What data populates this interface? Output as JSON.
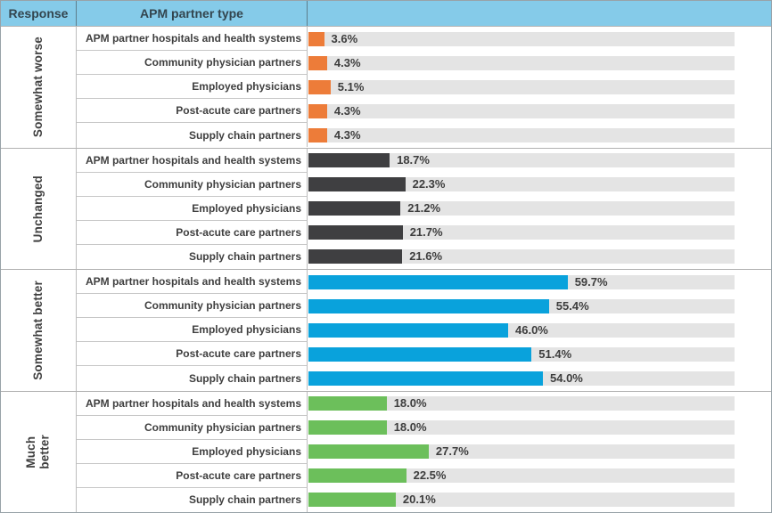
{
  "header": {
    "response": "Response",
    "partner_type": "APM partner type"
  },
  "colors": {
    "header_bg": "#85CBE9",
    "header_text": "#33454E",
    "track": "#E4E4E4",
    "label_text": "#3F3F3F",
    "somewhat_worse": "#ED7C39",
    "unchanged": "#3F3F41",
    "somewhat_better": "#09A2DC",
    "much_better": "#6CBF5B"
  },
  "chart_data": {
    "type": "bar",
    "orientation": "horizontal",
    "title": "",
    "xlabel": "",
    "ylabel": "",
    "xlim": [
      0,
      100
    ],
    "grid": false,
    "legend": "none",
    "categories": [
      "APM partner hospitals and health systems",
      "Community physician partners",
      "Employed physicians",
      "Post-acute care partners",
      "Supply chain partners"
    ],
    "series": [
      {
        "name": "Somewhat worse",
        "display": "Somewhat worse",
        "color": "#ED7C39",
        "values": [
          3.6,
          4.3,
          5.1,
          4.3,
          4.3
        ],
        "labels": [
          "3.6%",
          "4.3%",
          "5.1%",
          "4.3%",
          "4.3%"
        ]
      },
      {
        "name": "Unchanged",
        "display": "Unchanged",
        "color": "#3F3F41",
        "values": [
          18.7,
          22.3,
          21.2,
          21.7,
          21.6
        ],
        "labels": [
          "18.7%",
          "22.3%",
          "21.2%",
          "21.7%",
          "21.6%"
        ]
      },
      {
        "name": "Somewhat better",
        "display": "Somewhat better",
        "color": "#09A2DC",
        "values": [
          59.7,
          55.4,
          46.0,
          51.4,
          54.0
        ],
        "labels": [
          "59.7%",
          "55.4%",
          "46.0%",
          "51.4%",
          "54.0%"
        ]
      },
      {
        "name": "Much better",
        "display": "Much\nbetter",
        "color": "#6CBF5B",
        "values": [
          18.0,
          18.0,
          27.7,
          22.5,
          20.1
        ],
        "labels": [
          "18.0%",
          "18.0%",
          "27.7%",
          "22.5%",
          "20.1%"
        ]
      }
    ]
  }
}
